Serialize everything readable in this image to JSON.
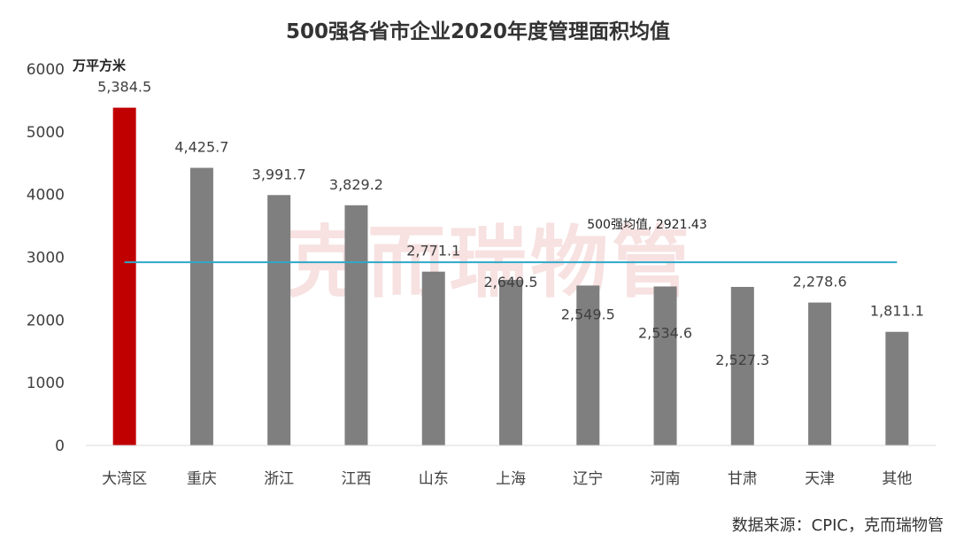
{
  "chart_data": {
    "type": "bar",
    "title": "500强各省市企业2020年度管理面积均值",
    "unit": "万平方米",
    "categories": [
      "大湾区",
      "重庆",
      "浙江",
      "江西",
      "山东",
      "上海",
      "辽宁",
      "河南",
      "甘肃",
      "天津",
      "其他"
    ],
    "values": [
      5384.5,
      4425.7,
      3991.7,
      3829.2,
      2771.1,
      2640.5,
      2549.5,
      2534.6,
      2527.3,
      2278.6,
      1811.1
    ],
    "value_labels": [
      "5,384.5",
      "4,425.7",
      "3,991.7",
      "3,829.2",
      "2,771.1",
      "2,640.5",
      "2,549.5",
      "2,534.6",
      "2,527.3",
      "2,278.6",
      "1,811.1"
    ],
    "ylim": [
      0,
      6000
    ],
    "yticks": [
      0,
      1000,
      2000,
      3000,
      4000,
      5000,
      6000
    ],
    "grid": false,
    "colors": {
      "highlight": "#c00000",
      "bar": "#7f7f7f",
      "average_line": "#31a7c8"
    },
    "highlight_index": 0,
    "reference_line": {
      "value": 2921.43,
      "label": "500强均值, 2921.43"
    },
    "watermark": "克而瑞物管",
    "source": "数据来源：CPIC，克而瑞物管"
  }
}
